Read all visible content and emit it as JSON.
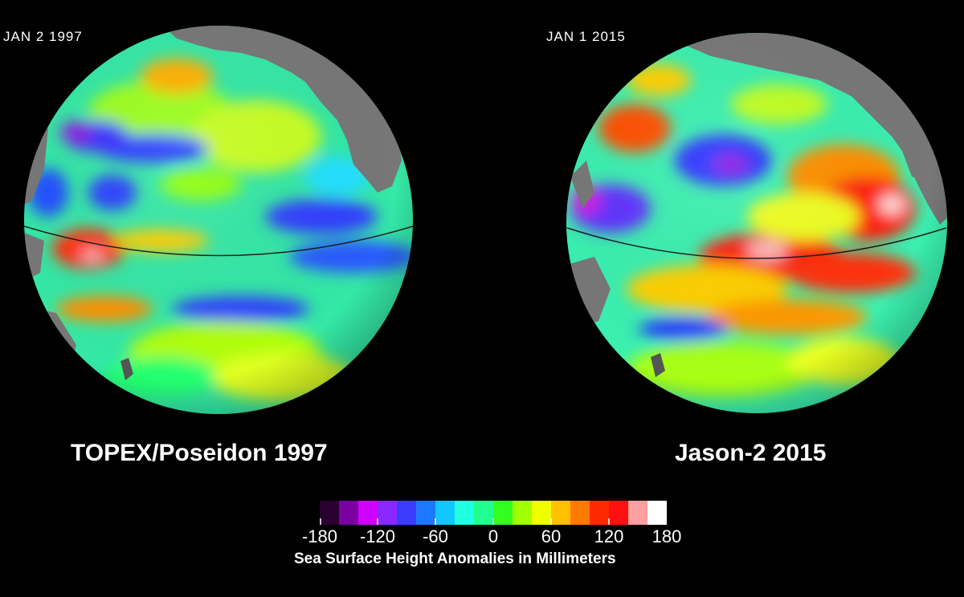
{
  "panels": [
    {
      "date": "JAN 2 1997",
      "caption": "TOPEX/Poseidon 1997"
    },
    {
      "date": "JAN 1 2015",
      "caption": "Jason-2 2015"
    }
  ],
  "legend": {
    "title": "Sea Surface Height Anomalies in Millimeters",
    "ticks": [
      "-180",
      "-120",
      "-60",
      "0",
      "60",
      "120",
      "180"
    ],
    "colors": [
      "#2a0030",
      "#7a00a0",
      "#d000ff",
      "#8a28ff",
      "#3c3cff",
      "#1e78ff",
      "#10c8ff",
      "#20ffe0",
      "#20ff90",
      "#30ff20",
      "#a0ff00",
      "#f0ff00",
      "#ffc000",
      "#ff7a00",
      "#ff2a00",
      "#ff1010",
      "#ffa0a0",
      "#ffffff"
    ]
  },
  "colors": {
    "background": "#000000",
    "land": "#777777",
    "ocean_base": "#33e8a8"
  }
}
